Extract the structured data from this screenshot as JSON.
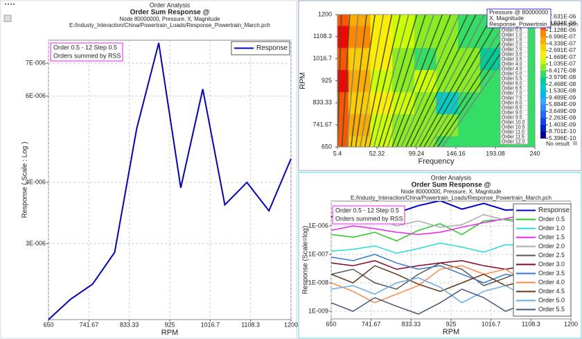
{
  "chart_data": [
    {
      "type": "line",
      "header": "Order Analysis",
      "title": "Order Sum Response @",
      "subtitle": "Node 80000000, Pressure, X, Magnitude",
      "source": "E:/Industy_Interaction/China/Powertrain_Loads/Response_Powertrain_March.pch",
      "annotation": [
        "Order 0.5 - 12 Step 0.5",
        "Orders summed by RSS"
      ],
      "xlabel": "RPM",
      "ylabel": "Response ( Scale : Log )",
      "log_y": true,
      "grid": true,
      "x": [
        650,
        700,
        750,
        800,
        850,
        900,
        950,
        1000,
        1050,
        1100,
        1150,
        1200
      ],
      "xlim": [
        650,
        1200
      ],
      "xticks": [
        650,
        741.67,
        833.33,
        925,
        1016.7,
        1108.3,
        1200
      ],
      "ylim": [
        2.1e-06,
        7.8e-06
      ],
      "yticks": [
        {
          "value": 3e-06,
          "label": "3E-006"
        },
        {
          "value": 4e-06,
          "label": "4E-006"
        },
        {
          "value": 6e-06,
          "label": "6E-006"
        },
        {
          "value": 7e-06,
          "label": "7E-006"
        }
      ],
      "series": [
        {
          "name": "Response",
          "color": "#0000cc",
          "values": [
            2.1e-06,
            2.31e-06,
            2.48e-06,
            2.88e-06,
            5.15e-06,
            7.7e-06,
            3.9e-06,
            6.2e-06,
            3.6e-06,
            4e-06,
            3.5e-06,
            4.47e-06
          ]
        }
      ]
    },
    {
      "type": "contour",
      "xlabel": "Frequency",
      "ylabel": "RPM",
      "legend_title": [
        "Pressure @ 80000000",
        "X, Magnitude",
        "Response_Powertrain_March.pch"
      ],
      "xlim": [
        5.4,
        240
      ],
      "xticks": [
        5.4,
        52.32,
        99.24,
        146.16,
        193.08,
        240
      ],
      "ylim": [
        650,
        1200
      ],
      "yticks": [
        650,
        741.67,
        833.33,
        925,
        1016.7,
        1108.3,
        1200
      ],
      "x": [
        5.4,
        31.47,
        57.53,
        83.6,
        109.67,
        135.73,
        161.8,
        187.87,
        213.93,
        240
      ],
      "y": [
        650,
        741.67,
        833.33,
        925,
        1016.7,
        1108.3,
        1200
      ],
      "z": [
        [
          1.5e-06,
          3e-07,
          1.2e-07,
          8e-08,
          9e-08,
          6e-08,
          5e-08,
          4e-08,
          4e-08,
          4e-08
        ],
        [
          2.5e-06,
          5e-07,
          1.5e-07,
          1e-07,
          7e-08,
          9e-08,
          5e-08,
          4e-08,
          4e-08,
          4e-08
        ],
        [
          1.8e-06,
          3.5e-07,
          2e-07,
          1.1e-07,
          8e-08,
          2e-08,
          6e-08,
          5e-08,
          4e-08,
          4e-08
        ],
        [
          3e-06,
          6e-07,
          1.3e-07,
          9e-08,
          1.2e-07,
          7e-08,
          8e-08,
          5e-08,
          4e-08,
          4e-08
        ],
        [
          2e-06,
          4e-07,
          1.7e-07,
          1e-07,
          6e-08,
          9e-08,
          7e-08,
          3e-08,
          5e-08,
          4e-08
        ],
        [
          3.5e-06,
          7e-07,
          2e-07,
          1.3e-07,
          1e-07,
          8e-08,
          6e-08,
          4e-08,
          1.5e-08,
          5e-08
        ],
        [
          2.2e-06,
          5e-07,
          1.8e-07,
          1.2e-07,
          9e-08,
          7e-08,
          6e-08,
          5e-08,
          4e-08,
          4e-08
        ]
      ],
      "levels": [
        {
          "value": 7.631e-06,
          "label": "7.631E-06"
        },
        {
          "value": 2.934e-06,
          "label": "2.934E-06"
        },
        {
          "value": 1.128e-06,
          "label": "1.128E-06"
        },
        {
          "value": 6.996e-07,
          "label": "6.996E-07"
        },
        {
          "value": 4.339e-07,
          "label": "4.339E-07"
        },
        {
          "value": 2.691e-07,
          "label": "2.691E-07"
        },
        {
          "value": 1.669e-07,
          "label": "1.669E-07"
        },
        {
          "value": 1.035e-07,
          "label": "1.035E-07"
        },
        {
          "value": 6.417e-08,
          "label": "6.417E-08"
        },
        {
          "value": 3.979e-08,
          "label": "3.979E-08"
        },
        {
          "value": 2.468e-08,
          "label": "2.468E-08"
        },
        {
          "value": 1.53e-08,
          "label": "1.530E-08"
        },
        {
          "value": 9.489e-09,
          "label": "9.489E-09"
        },
        {
          "value": 5.884e-09,
          "label": "5.884E-09"
        },
        {
          "value": 3.649e-09,
          "label": "3.649E-09"
        },
        {
          "value": 2.263e-09,
          "label": "2.263E-09"
        },
        {
          "value": 1.403e-09,
          "label": "1.403E-09"
        },
        {
          "value": 8.701e-10,
          "label": "8.701E-10"
        },
        {
          "value": 5.396e-10,
          "label": "5.396E-10"
        }
      ],
      "level_colors": [
        "#ff0000",
        "#ff5500",
        "#ff8800",
        "#ffaa00",
        "#ffcc00",
        "#ffee00",
        "#ccff00",
        "#88ee22",
        "#33dd66",
        "#00cc99",
        "#00cccc",
        "#00bbee",
        "#33aaff",
        "#3388ff",
        "#2266ff",
        "#1144ee",
        "#0022cc",
        "#000099"
      ],
      "no_result_label": "No result",
      "order_labels": [
        "Order 0.5",
        "Order 1.0",
        "Order 1.5",
        "Order 2.0",
        "Order 2.5",
        "Order 3.0",
        "Order 3.5",
        "Order 4.0",
        "Order 4.5",
        "Order 5.0",
        "Order 5.5",
        "Order 6.0",
        "Order 6.5",
        "Order 7.0",
        "Order 7.5",
        "Order 8.0",
        "Order 8.5",
        "Order 9.0",
        "Order 9.5",
        "Order 10.0",
        "Order 10.5",
        "Order 11.0",
        "Order 11.5",
        "Order 12.0"
      ]
    },
    {
      "type": "line",
      "header": "Order Analysis",
      "title": "Order Sum Response @",
      "subtitle": "Node 80000000, Pressure, X, Magnitude",
      "source": "E:/Industy_Interaction/China/Powertrain_Loads/Response_Powertrain_March.pch",
      "annotation": [
        "Order 0.5 - 12 Step 0.5",
        "Orders summed by RSS"
      ],
      "xlabel": "RPM",
      "ylabel": "Response (Scale=log)",
      "log_y": true,
      "grid": true,
      "x": [
        650,
        700,
        750,
        800,
        850,
        900,
        950,
        1000,
        1050,
        1100,
        1150,
        1200
      ],
      "xlim": [
        650,
        1200
      ],
      "xticks": [
        650,
        741.67,
        833.33,
        925,
        1016.7,
        1108.3,
        1200
      ],
      "ylim": [
        5.4e-10,
        7.5e-06
      ],
      "yticks": [
        {
          "value": 1e-09,
          "label": "1E-009"
        },
        {
          "value": 1e-08,
          "label": "1E-008"
        },
        {
          "value": 1e-07,
          "label": "1E-007"
        },
        {
          "value": 1e-06,
          "label": "1E-006"
        }
      ],
      "series": [
        {
          "name": "Response",
          "color": "#0000cc",
          "values": [
            2.1e-06,
            2.31e-06,
            2.48e-06,
            2.88e-06,
            5.15e-06,
            7.7e-06,
            3.9e-06,
            6.2e-06,
            3.6e-06,
            4e-06,
            3.5e-06,
            4.47e-06
          ]
        },
        {
          "name": "Order 0.5",
          "color": "#22cc22",
          "values": [
            5e-07,
            4e-07,
            6e-07,
            3e-07,
            7e-07,
            1.2e-06,
            5e-07,
            1.5e-06,
            1.7e-06,
            1.6e-06,
            2.5e-06,
            3e-06
          ]
        },
        {
          "name": "Order 1.0",
          "color": "#22dddd",
          "values": [
            1.3e-07,
            1.5e-07,
            2e-07,
            1.1e-07,
            1.6e-07,
            2.5e-07,
            1.8e-07,
            1.2e-07,
            2.2e-07,
            2e-07,
            3e-07,
            2.6e-07
          ]
        },
        {
          "name": "Order 1.5",
          "color": "#ee22ee",
          "values": [
            7e-07,
            1e-06,
            8e-07,
            6e-07,
            5e-07,
            6e-07,
            9e-07,
            1.3e-06,
            1.8e-06,
            2.6e-06,
            2.2e-06,
            2e-06
          ]
        },
        {
          "name": "Order 2.0",
          "color": "#aaaaaa",
          "values": [
            3e-06,
            1.2e-06,
            2e-06,
            1e-06,
            1.5e-06,
            9e-07,
            1.1e-06,
            2.5e-06,
            1.6e-06,
            1.2e-06,
            1.5e-06,
            1e-06
          ]
        },
        {
          "name": "Order 2.5",
          "color": "#555555",
          "values": [
            2e-08,
            3e-08,
            1e-08,
            6e-09,
            2e-08,
            5e-08,
            3e-08,
            8e-09,
            1.5e-08,
            3e-08,
            2e-08,
            1e-08
          ]
        },
        {
          "name": "Order 3.0",
          "color": "#880022",
          "values": [
            5e-08,
            4e-08,
            6e-08,
            3e-08,
            4e-08,
            5e-08,
            6e-08,
            4e-08,
            3e-08,
            4e-08,
            5e-08,
            3e-08
          ]
        },
        {
          "name": "Order 3.5",
          "color": "#3377cc",
          "values": [
            8e-08,
            6e-08,
            1e-07,
            5e-08,
            3e-08,
            4e-08,
            2e-08,
            1e-08,
            2e-08,
            1.5e-08,
            8e-09,
            1e-08
          ]
        },
        {
          "name": "Order 4.0",
          "color": "#ff8844",
          "values": [
            1e-08,
            5e-09,
            2e-09,
            4e-09,
            8e-09,
            3e-08,
            4e-08,
            2e-08,
            3e-08,
            1e-08,
            3e-09,
            5e-09
          ]
        },
        {
          "name": "Order 4.5",
          "color": "#663311",
          "values": [
            2e-08,
            1e-08,
            4e-08,
            2e-08,
            9e-09,
            5e-09,
            1e-08,
            2e-08,
            8e-09,
            1.2e-08,
            6e-09,
            3e-09
          ]
        },
        {
          "name": "Order 5.0",
          "color": "#66aaee",
          "values": [
            6e-09,
            8e-09,
            4e-09,
            1e-08,
            1.5e-08,
            7e-09,
            2e-09,
            5e-09,
            8e-09,
            3e-09,
            2e-09,
            1e-09
          ]
        },
        {
          "name": "Order 5.5",
          "color": "#445577",
          "values": [
            2e-09,
            1e-09,
            3e-09,
            1.5e-09,
            8e-10,
            2e-09,
            6e-09,
            3e-09,
            1e-09,
            2e-09,
            3e-09,
            1.5e-09
          ]
        }
      ]
    }
  ]
}
